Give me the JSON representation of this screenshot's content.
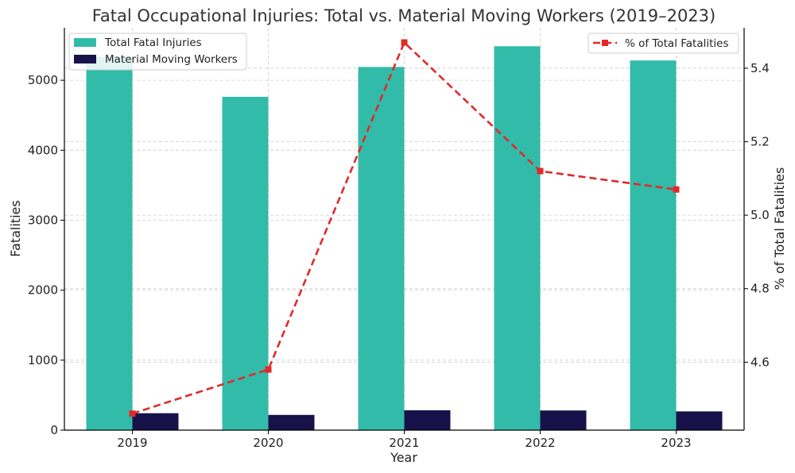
{
  "colors": {
    "total_bar": "#33BBA9",
    "material_bar": "#17124A",
    "pct_line": "#E02A2A",
    "grid": "#cccccc"
  },
  "chart_data": {
    "type": "bar",
    "title": "Fatal Occupational Injuries: Total vs. Material Moving Workers (2019–2023)",
    "xlabel": "Year",
    "ylabel": "Fatalities",
    "y2label": "% of Total Fatalities",
    "categories": [
      "2019",
      "2020",
      "2021",
      "2022",
      "2023"
    ],
    "ylim": [
      0,
      5750
    ],
    "yticks": [
      0,
      1000,
      2000,
      3000,
      4000,
      5000
    ],
    "y2lim": [
      4.415,
      5.51
    ],
    "y2ticks": [
      "4.6",
      "4.8",
      "5.0",
      "5.2",
      "5.4"
    ],
    "grid": true,
    "legend_left_position": "top-left",
    "legend_right_position": "top-right",
    "series": [
      {
        "name": "Total Fatal Injuries",
        "type": "bar",
        "axis": "left",
        "values": [
          5333,
          4764,
          5190,
          5486,
          5283
        ]
      },
      {
        "name": "Material Moving Workers",
        "type": "bar",
        "axis": "left",
        "values": [
          242,
          218,
          284,
          281,
          268
        ]
      },
      {
        "name": "% of Total Fatalities",
        "type": "line",
        "style": "dashed",
        "marker": "square",
        "axis": "right",
        "values": [
          4.46,
          4.58,
          5.47,
          5.12,
          5.07
        ]
      }
    ]
  }
}
